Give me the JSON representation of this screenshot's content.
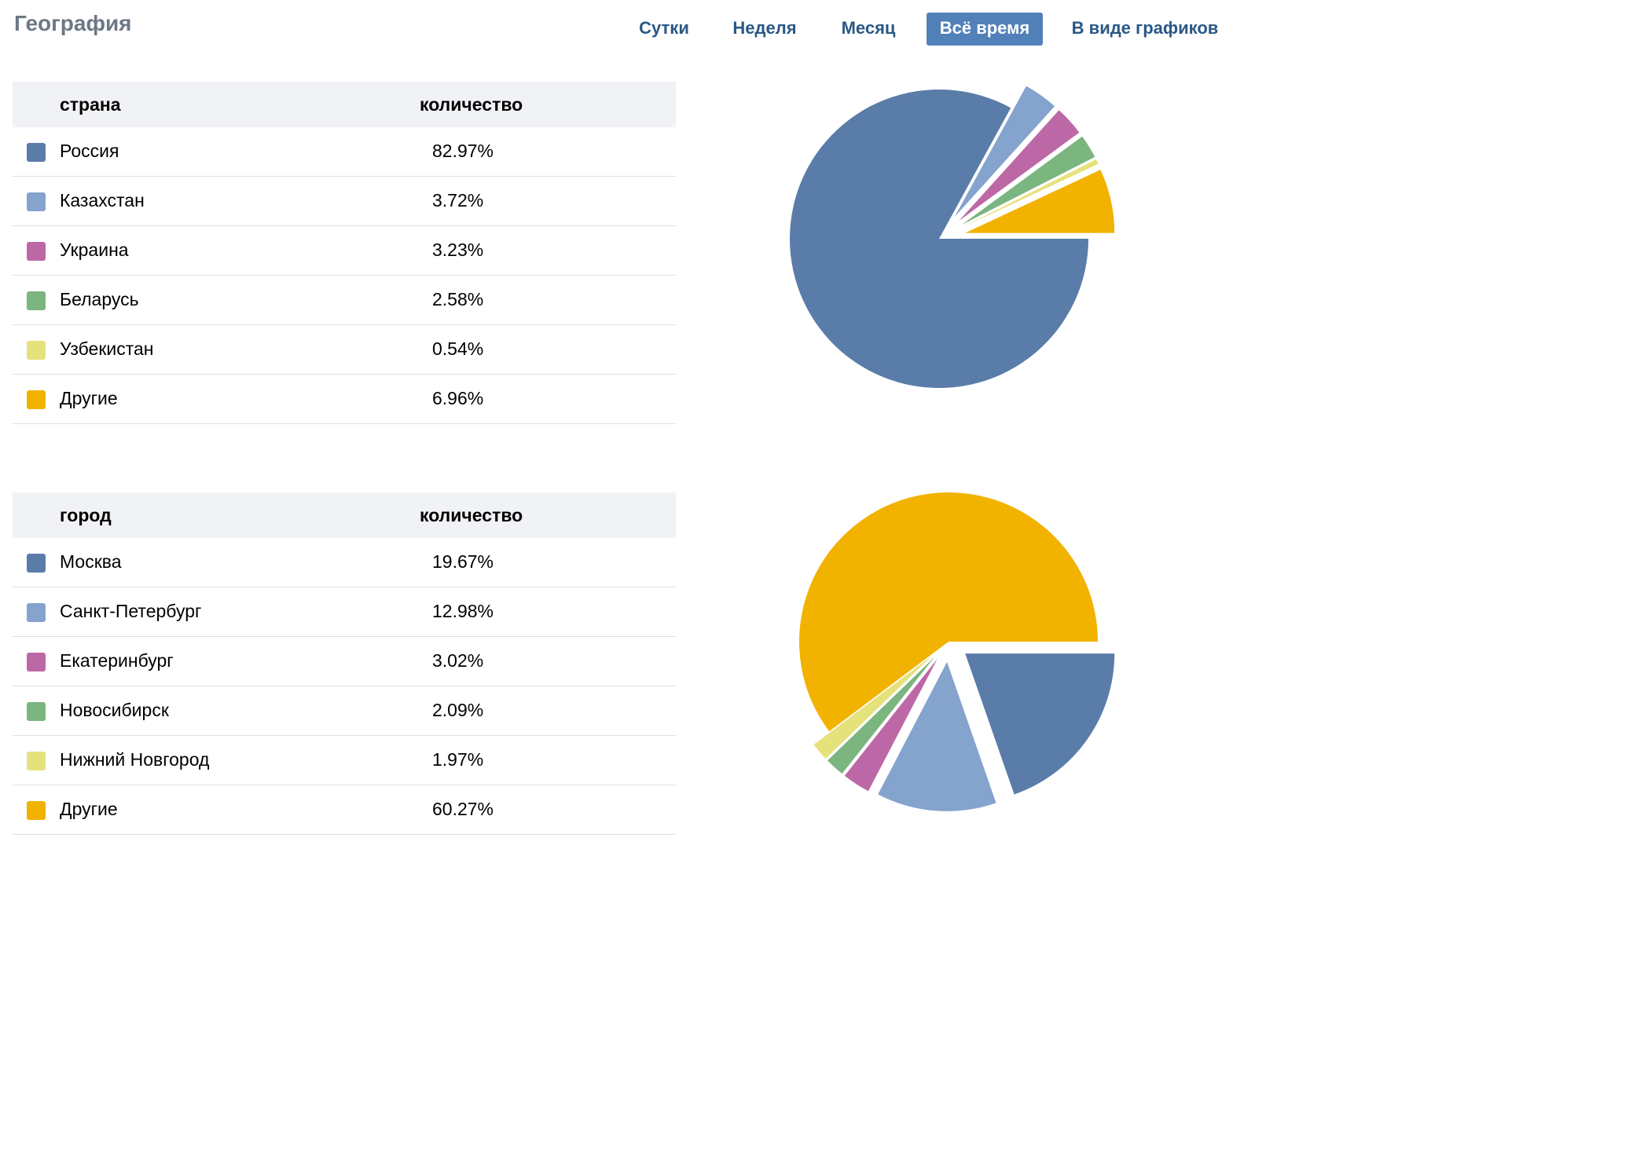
{
  "page_title": "География",
  "period_tabs": [
    {
      "label": "Сутки",
      "active": false
    },
    {
      "label": "Неделя",
      "active": false
    },
    {
      "label": "Месяц",
      "active": false
    },
    {
      "label": "Всё время",
      "active": true
    },
    {
      "label": "В виде графиков",
      "active": false
    }
  ],
  "countries": {
    "header_label": "страна",
    "header_value": "количество",
    "rows": [
      {
        "label": "Россия",
        "value": "82.97%",
        "color": "#5a7ca8"
      },
      {
        "label": "Казахстан",
        "value": "3.72%",
        "color": "#84a3cd"
      },
      {
        "label": "Украина",
        "value": "3.23%",
        "color": "#bd68a6"
      },
      {
        "label": "Беларусь",
        "value": "2.58%",
        "color": "#7bb57f"
      },
      {
        "label": "Узбекистан",
        "value": "0.54%",
        "color": "#e6e27b"
      },
      {
        "label": "Другие",
        "value": "6.96%",
        "color": "#f2b200"
      }
    ]
  },
  "cities": {
    "header_label": "город",
    "header_value": "количество",
    "rows": [
      {
        "label": "Москва",
        "value": "19.67%",
        "color": "#5a7ca8"
      },
      {
        "label": "Санкт-Петербург",
        "value": "12.98%",
        "color": "#84a3cd"
      },
      {
        "label": "Екатеринбург",
        "value": "3.02%",
        "color": "#bd68a6"
      },
      {
        "label": "Новосибирск",
        "value": "2.09%",
        "color": "#7bb57f"
      },
      {
        "label": "Нижний Новгород",
        "value": "1.97%",
        "color": "#e6e27b"
      },
      {
        "label": "Другие",
        "value": "60.27%",
        "color": "#f2b200"
      }
    ]
  },
  "chart_data": [
    {
      "type": "pie",
      "categories": [
        "Россия",
        "Казахстан",
        "Украина",
        "Беларусь",
        "Узбекистан",
        "Другие"
      ],
      "values": [
        82.97,
        3.72,
        3.23,
        2.58,
        0.54,
        6.96
      ],
      "colors": [
        "#5a7ca8",
        "#84a3cd",
        "#bd68a6",
        "#7bb57f",
        "#e6e27b",
        "#f2b200"
      ],
      "exploded": [
        false,
        true,
        true,
        true,
        true,
        true
      ],
      "legend": "none"
    },
    {
      "type": "pie",
      "categories": [
        "Москва",
        "Санкт-Петербург",
        "Екатеринбург",
        "Новосибирск",
        "Нижний Новгород",
        "Другие"
      ],
      "values": [
        19.67,
        12.98,
        3.02,
        2.09,
        1.97,
        60.27
      ],
      "colors": [
        "#5a7ca8",
        "#84a3cd",
        "#bd68a6",
        "#7bb57f",
        "#e6e27b",
        "#f2b200"
      ],
      "exploded": [
        true,
        true,
        true,
        true,
        true,
        false
      ],
      "legend": "none"
    }
  ]
}
